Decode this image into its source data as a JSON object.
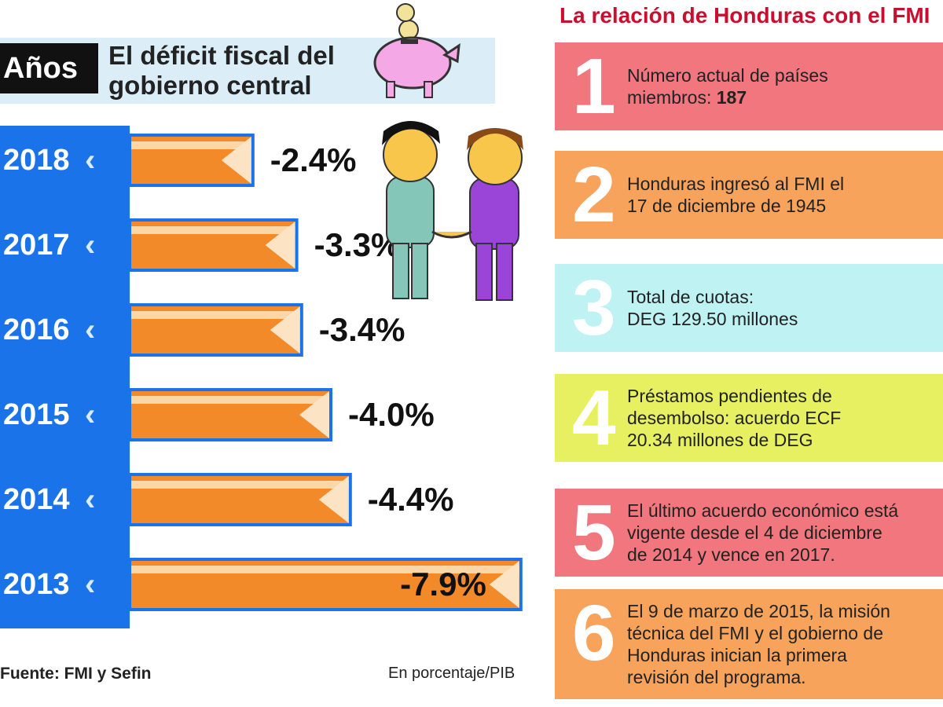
{
  "left_panel": {
    "years_header": "Años",
    "title_line1": "El déficit fiscal del",
    "title_line2": "gobierno central",
    "source": "Fuente: FMI y Sefin",
    "unit": "En porcentaje/PIB"
  },
  "chart_data": {
    "type": "bar",
    "orientation": "horizontal",
    "categories": [
      "2018",
      "2017",
      "2016",
      "2015",
      "2014",
      "2013"
    ],
    "values": [
      -2.4,
      -3.3,
      -3.4,
      -4.0,
      -4.4,
      -7.9
    ],
    "value_labels": [
      "-2.4%",
      "-3.3%",
      "-3.4%",
      "-4.0%",
      "-4.4%",
      "-7.9%"
    ],
    "bar_color": "#f28a2a",
    "bar_border": "#1a73e8"
  },
  "right_panel": {
    "title": "La relación de Honduras con el FMI",
    "items": [
      {
        "number": "1",
        "text": "Número actual de países\nmiembros: ",
        "bold": "187"
      },
      {
        "number": "2",
        "text": "Honduras ingresó al FMI el\n17 de diciembre de 1945"
      },
      {
        "number": "3",
        "text": "Total de cuotas:\nDEG 129.50 millones"
      },
      {
        "number": "4",
        "text": "Préstamos pendientes de\ndesembolso: acuerdo ECF\n20.34 millones de DEG"
      },
      {
        "number": "5",
        "text": "El último acuerdo económico está\nvigente desde el 4 de diciembre\nde 2014 y vence en 2017."
      },
      {
        "number": "6",
        "text": "El 9 de marzo de 2015, la misión\ntécnica del FMI y el gobierno de\nHonduras inician la primera\nrevisión del programa."
      }
    ]
  },
  "colors": {
    "accent_blue": "#1a73e8",
    "title_red": "#c8102e"
  },
  "icons": [
    "piggy-bank-icon",
    "coins-icon",
    "handshake-people-icon"
  ]
}
